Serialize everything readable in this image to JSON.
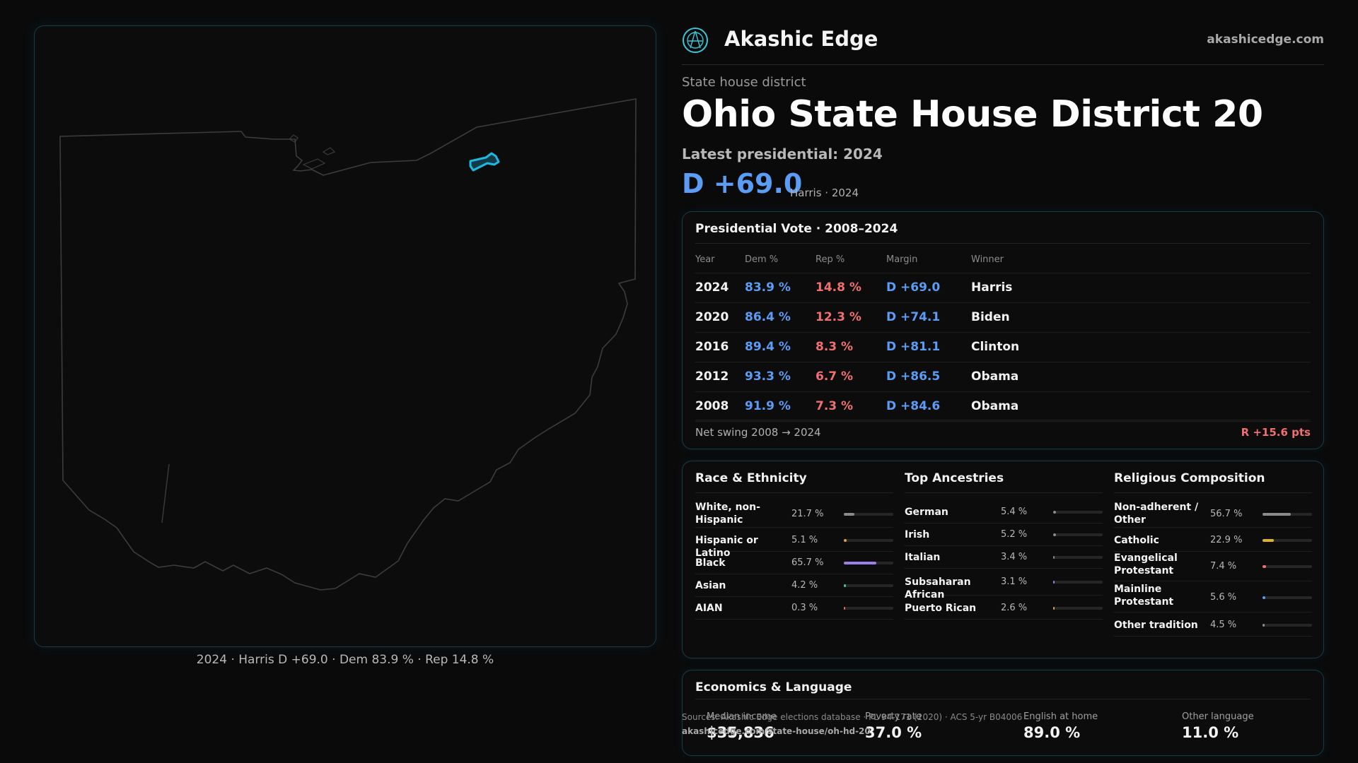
{
  "brand": {
    "name": "Akashic Edge",
    "site": "akashicedge.com"
  },
  "district": {
    "kicker": "State house district",
    "title": "Ohio State House District 20",
    "latest_label": "Latest presidential: 2024",
    "margin": "D +69.0",
    "margin_sub": "Harris · 2024"
  },
  "map": {
    "caption": "2024 · Harris D +69.0 · Dem 83.9 % · Rep 14.8 %",
    "highlight_color": "#1fb8e0"
  },
  "presidential": {
    "title": "Presidential Vote · 2008–2024",
    "headers": [
      "Year",
      "Dem %",
      "Rep %",
      "Margin",
      "Winner"
    ],
    "rows": [
      {
        "year": "2024",
        "dem": "83.9 %",
        "rep": "14.8 %",
        "margin": "D +69.0",
        "winner": "Harris"
      },
      {
        "year": "2020",
        "dem": "86.4 %",
        "rep": "12.3 %",
        "margin": "D +74.1",
        "winner": "Biden"
      },
      {
        "year": "2016",
        "dem": "89.4 %",
        "rep": "8.3 %",
        "margin": "D +81.1",
        "winner": "Clinton"
      },
      {
        "year": "2012",
        "dem": "93.3 %",
        "rep": "6.7 %",
        "margin": "D +86.5",
        "winner": "Obama"
      },
      {
        "year": "2008",
        "dem": "91.9 %",
        "rep": "7.3 %",
        "margin": "D +84.6",
        "winner": "Obama"
      }
    ],
    "swing_label": "Net swing 2008 → 2024",
    "swing_value": "R +15.6 pts"
  },
  "race": {
    "title": "Race & Ethnicity",
    "items": [
      {
        "label": "White, non-Hispanic",
        "pct": "21.7 %",
        "value": 21.7,
        "color": "#8a8a8a"
      },
      {
        "label": "Hispanic or Latino",
        "pct": "5.1 %",
        "value": 5.1,
        "color": "#e0a030"
      },
      {
        "label": "Black",
        "pct": "65.7 %",
        "value": 65.7,
        "color": "#9b7fe8"
      },
      {
        "label": "Asian",
        "pct": "4.2 %",
        "value": 4.2,
        "color": "#3fc3a0"
      },
      {
        "label": "AIAN",
        "pct": "0.3 %",
        "value": 0.3,
        "color": "#e07050"
      }
    ]
  },
  "ancestry": {
    "title": "Top Ancestries",
    "items": [
      {
        "label": "German",
        "pct": "5.4 %",
        "value": 5.4,
        "color": "#8a8a8a"
      },
      {
        "label": "Irish",
        "pct": "5.2 %",
        "value": 5.2,
        "color": "#8a8a8a"
      },
      {
        "label": "Italian",
        "pct": "3.4 %",
        "value": 3.4,
        "color": "#8a8a8a"
      },
      {
        "label": "Subsaharan African",
        "pct": "3.1 %",
        "value": 3.1,
        "color": "#9b7fe8"
      },
      {
        "label": "Puerto Rican",
        "pct": "2.6 %",
        "value": 2.6,
        "color": "#e0a030"
      }
    ]
  },
  "religion": {
    "title": "Religious Composition",
    "items": [
      {
        "label": "Non-adherent / Other",
        "pct": "56.7 %",
        "value": 56.7,
        "color": "#8a8a8a"
      },
      {
        "label": "Catholic",
        "pct": "22.9 %",
        "value": 22.9,
        "color": "#e0b030"
      },
      {
        "label": "Evangelical Protestant",
        "pct": "7.4 %",
        "value": 7.4,
        "color": "#f07070"
      },
      {
        "label": "Mainline Protestant",
        "pct": "5.6 %",
        "value": 5.6,
        "color": "#5b9cf5"
      },
      {
        "label": "Other tradition",
        "pct": "4.5 %",
        "value": 4.5,
        "color": "#8a8a8a"
      }
    ]
  },
  "economics": {
    "title": "Economics & Language",
    "metrics": [
      {
        "label": "Median income",
        "value": "$35,836"
      },
      {
        "label": "Poverty rate",
        "value": "37.0 %"
      },
      {
        "label": "English at home",
        "value": "89.0 %"
      },
      {
        "label": "Other language",
        "value": "11.0 %"
      }
    ]
  },
  "sources": {
    "text": "Sources: Akashic Edge elections database · PL 94-171 (2020) · ACS 5-yr B04006",
    "url": "akashicedge.com/state-house/oh-hd-20"
  }
}
